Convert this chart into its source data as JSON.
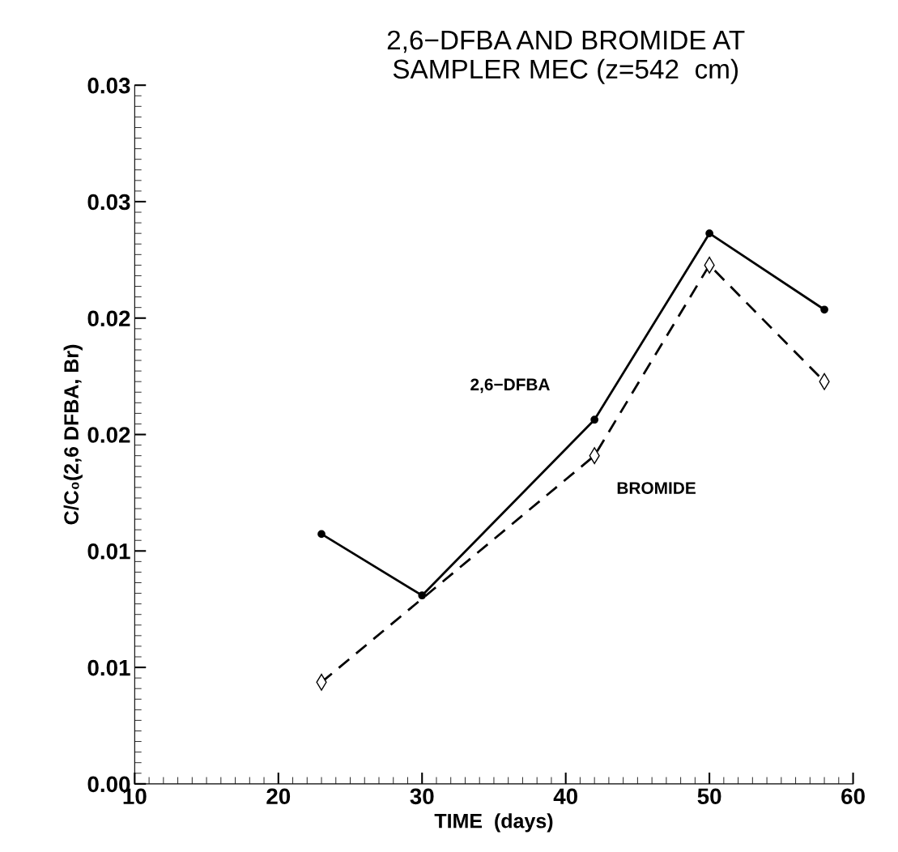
{
  "chart_data": {
    "type": "line",
    "title": "2,6−DFBA AND BROMIDE AT\nSAMPLER MEC (z=542  cm)",
    "xlabel": "TIME  (days)",
    "ylabel": "C/C₀(2,6 DFBA, Br)",
    "xlim": [
      10,
      60
    ],
    "xticks": [
      10,
      20,
      30,
      40,
      50,
      60
    ],
    "ylim": [
      0,
      0.033
    ],
    "yticks": [
      {
        "value": 0,
        "label": "0.00"
      },
      {
        "value": 0.0055,
        "label": "0.01"
      },
      {
        "value": 0.011,
        "label": "0.01"
      },
      {
        "value": 0.0165,
        "label": "0.02"
      },
      {
        "value": 0.022,
        "label": "0.02"
      },
      {
        "value": 0.0275,
        "label": "0.03"
      },
      {
        "value": 0.033,
        "label": "0.03"
      }
    ],
    "grid": false,
    "legend": false,
    "series": [
      {
        "name": "2,6−DFBA",
        "color": "#000000",
        "marker": "circle",
        "line_style": "solid",
        "x": [
          23,
          30,
          42,
          50,
          58
        ],
        "values": [
          0.0118,
          0.0089,
          0.0172,
          0.026,
          0.0224
        ]
      },
      {
        "name": "BROMIDE",
        "color": "#000000",
        "marker": "diamond",
        "line_style": "dashed",
        "x": [
          23,
          42,
          50,
          58
        ],
        "values": [
          0.0048,
          0.0155,
          0.0245,
          0.019
        ]
      }
    ]
  }
}
